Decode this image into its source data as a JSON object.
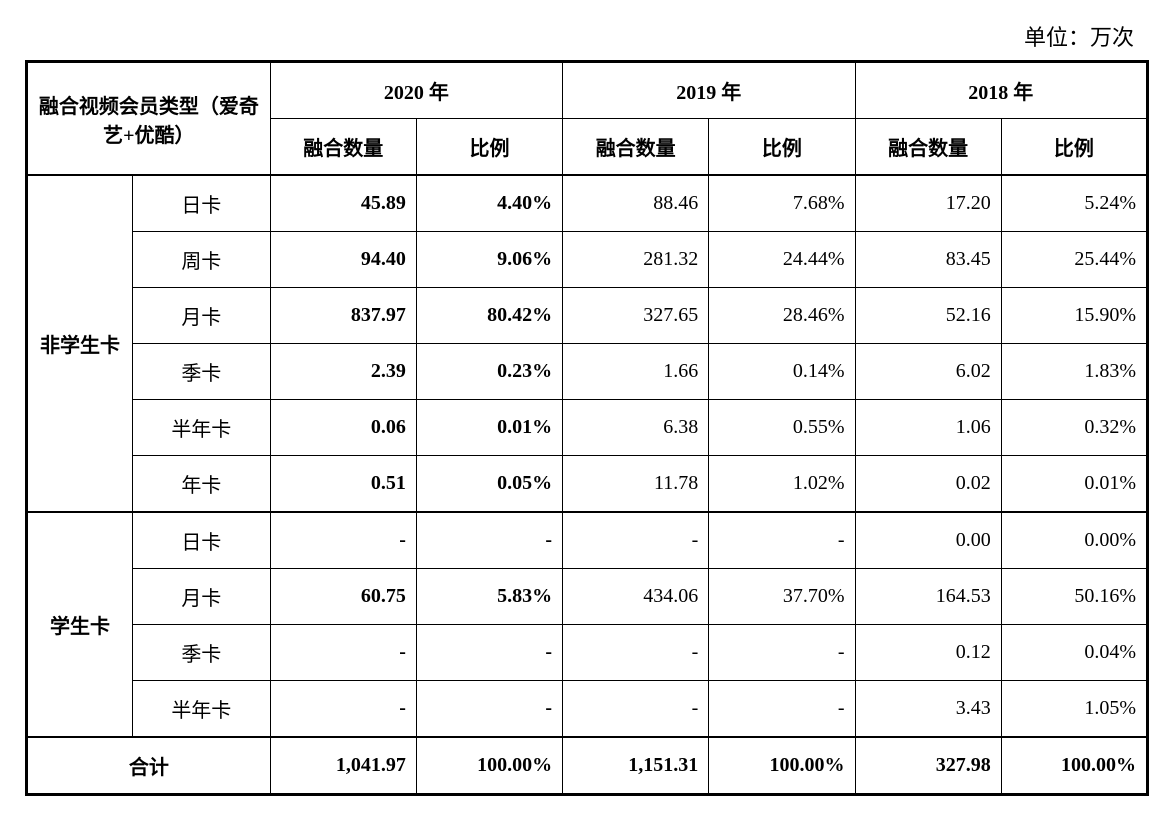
{
  "unit_label": "单位：万次",
  "table": {
    "header": {
      "type_label": "融合视频会员类型（爱奇艺+优酷）",
      "years": [
        "2020 年",
        "2019 年",
        "2018 年"
      ],
      "sub_cols": {
        "quantity": "融合数量",
        "ratio": "比例"
      }
    },
    "groups": [
      {
        "name": "非学生卡",
        "rows": [
          {
            "label": "日卡",
            "y2020_qty": "45.89",
            "y2020_pct": "4.40%",
            "y2019_qty": "88.46",
            "y2019_pct": "7.68%",
            "y2018_qty": "17.20",
            "y2018_pct": "5.24%"
          },
          {
            "label": "周卡",
            "y2020_qty": "94.40",
            "y2020_pct": "9.06%",
            "y2019_qty": "281.32",
            "y2019_pct": "24.44%",
            "y2018_qty": "83.45",
            "y2018_pct": "25.44%"
          },
          {
            "label": "月卡",
            "y2020_qty": "837.97",
            "y2020_pct": "80.42%",
            "y2019_qty": "327.65",
            "y2019_pct": "28.46%",
            "y2018_qty": "52.16",
            "y2018_pct": "15.90%"
          },
          {
            "label": "季卡",
            "y2020_qty": "2.39",
            "y2020_pct": "0.23%",
            "y2019_qty": "1.66",
            "y2019_pct": "0.14%",
            "y2018_qty": "6.02",
            "y2018_pct": "1.83%"
          },
          {
            "label": "半年卡",
            "y2020_qty": "0.06",
            "y2020_pct": "0.01%",
            "y2019_qty": "6.38",
            "y2019_pct": "0.55%",
            "y2018_qty": "1.06",
            "y2018_pct": "0.32%"
          },
          {
            "label": "年卡",
            "y2020_qty": "0.51",
            "y2020_pct": "0.05%",
            "y2019_qty": "11.78",
            "y2019_pct": "1.02%",
            "y2018_qty": "0.02",
            "y2018_pct": "0.01%"
          }
        ]
      },
      {
        "name": "学生卡",
        "rows": [
          {
            "label": "日卡",
            "y2020_qty": "-",
            "y2020_pct": "-",
            "y2019_qty": "-",
            "y2019_pct": "-",
            "y2018_qty": "0.00",
            "y2018_pct": "0.00%"
          },
          {
            "label": "月卡",
            "y2020_qty": "60.75",
            "y2020_pct": "5.83%",
            "y2019_qty": "434.06",
            "y2019_pct": "37.70%",
            "y2018_qty": "164.53",
            "y2018_pct": "50.16%"
          },
          {
            "label": "季卡",
            "y2020_qty": "-",
            "y2020_pct": "-",
            "y2019_qty": "-",
            "y2019_pct": "-",
            "y2018_qty": "0.12",
            "y2018_pct": "0.04%"
          },
          {
            "label": "半年卡",
            "y2020_qty": "-",
            "y2020_pct": "-",
            "y2019_qty": "-",
            "y2019_pct": "-",
            "y2018_qty": "3.43",
            "y2018_pct": "1.05%"
          }
        ]
      }
    ],
    "total": {
      "label": "合计",
      "y2020_qty": "1,041.97",
      "y2020_pct": "100.00%",
      "y2019_qty": "1,151.31",
      "y2019_pct": "100.00%",
      "y2018_qty": "327.98",
      "y2018_pct": "100.00%"
    }
  },
  "styling": {
    "background_color": "#ffffff",
    "border_color": "#000000",
    "text_color": "#000000",
    "font_family": "SimSun",
    "header_fontsize": 20,
    "cell_fontsize": 20,
    "unit_fontsize": 22,
    "outer_border_width": 3,
    "inner_border_width": 1,
    "bold_year_column": "2020"
  }
}
